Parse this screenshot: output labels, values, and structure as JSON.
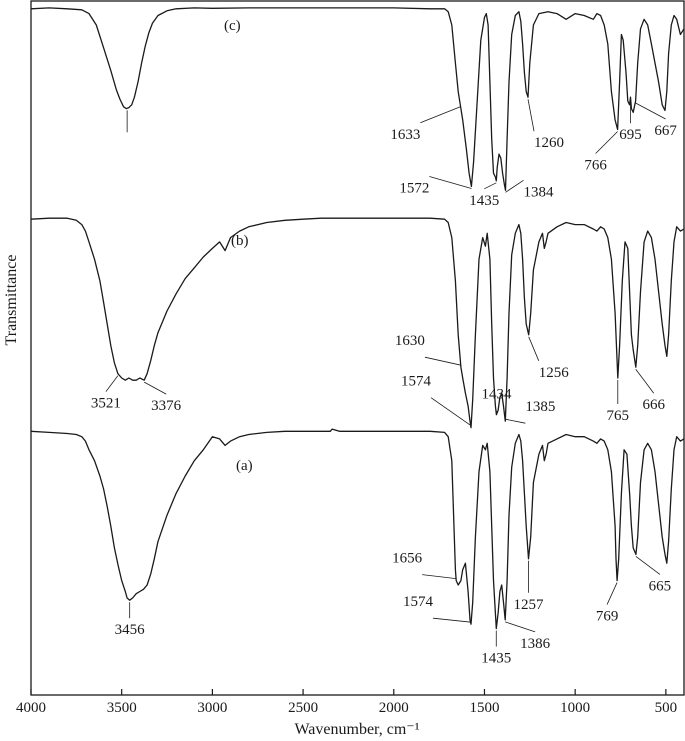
{
  "chart_data": {
    "type": "line",
    "title": "",
    "xlabel": "Wavenumber, cm⁻¹",
    "ylabel": "Transmittance",
    "xlim": [
      4000,
      400
    ],
    "x_reversed": true,
    "y_ticks_shown": false,
    "grid": false,
    "xticks": [
      {
        "value": 4000,
        "label": "4000"
      },
      {
        "value": 3500,
        "label": "3500"
      },
      {
        "value": 3000,
        "label": "3000"
      },
      {
        "value": 2500,
        "label": "2500"
      },
      {
        "value": 2000,
        "label": "2000"
      },
      {
        "value": 1500,
        "label": "1500"
      },
      {
        "value": 1000,
        "label": "1000"
      },
      {
        "value": 500,
        "label": "500"
      }
    ],
    "series": [
      {
        "name": "(c)",
        "label": "(c)",
        "x": [
          4000,
          3900,
          3800,
          3720,
          3680,
          3640,
          3600,
          3560,
          3530,
          3510,
          3490,
          3475,
          3460,
          3445,
          3430,
          3410,
          3390,
          3370,
          3350,
          3330,
          3300,
          3250,
          3200,
          3100,
          3000,
          2800,
          2500,
          2200,
          2000,
          1800,
          1720,
          1700,
          1680,
          1660,
          1645,
          1633,
          1620,
          1600,
          1585,
          1572,
          1560,
          1540,
          1520,
          1500,
          1490,
          1480,
          1470,
          1460,
          1450,
          1440,
          1435,
          1430,
          1420,
          1410,
          1400,
          1390,
          1384,
          1375,
          1365,
          1350,
          1330,
          1310,
          1300,
          1290,
          1280,
          1270,
          1260,
          1250,
          1230,
          1200,
          1150,
          1100,
          1050,
          1000,
          950,
          900,
          880,
          860,
          840,
          820,
          800,
          780,
          766,
          755,
          745,
          735,
          720,
          710,
          700,
          695,
          690,
          680,
          667,
          655,
          640,
          620,
          600,
          580,
          560,
          540,
          520,
          505,
          495,
          485,
          470,
          455,
          440,
          420,
          400
        ],
        "values": [
          0.985,
          0.99,
          0.985,
          0.98,
          0.96,
          0.9,
          0.78,
          0.66,
          0.56,
          0.51,
          0.47,
          0.46,
          0.465,
          0.48,
          0.52,
          0.6,
          0.7,
          0.79,
          0.86,
          0.91,
          0.95,
          0.975,
          0.985,
          0.99,
          0.988,
          0.99,
          0.99,
          0.99,
          0.99,
          0.985,
          0.985,
          0.97,
          0.9,
          0.7,
          0.55,
          0.48,
          0.4,
          0.25,
          0.12,
          0.05,
          0.18,
          0.5,
          0.82,
          0.94,
          0.96,
          0.9,
          0.6,
          0.3,
          0.12,
          0.1,
          0.08,
          0.15,
          0.22,
          0.2,
          0.12,
          0.06,
          0.03,
          0.3,
          0.6,
          0.85,
          0.95,
          0.97,
          0.92,
          0.8,
          0.65,
          0.55,
          0.52,
          0.7,
          0.9,
          0.96,
          0.97,
          0.96,
          0.93,
          0.96,
          0.95,
          0.93,
          0.96,
          0.95,
          0.9,
          0.8,
          0.55,
          0.4,
          0.35,
          0.6,
          0.85,
          0.82,
          0.65,
          0.5,
          0.48,
          0.52,
          0.46,
          0.44,
          0.5,
          0.7,
          0.88,
          0.93,
          0.9,
          0.8,
          0.7,
          0.6,
          0.48,
          0.45,
          0.55,
          0.75,
          0.9,
          0.95,
          0.93,
          0.85,
          0.88
        ]
      },
      {
        "name": "(b)",
        "label": "(b)",
        "x": [
          4000,
          3900,
          3800,
          3750,
          3720,
          3700,
          3680,
          3650,
          3620,
          3600,
          3580,
          3560,
          3540,
          3521,
          3500,
          3480,
          3460,
          3440,
          3420,
          3400,
          3376,
          3360,
          3340,
          3320,
          3300,
          3250,
          3200,
          3150,
          3100,
          3050,
          3000,
          2960,
          2930,
          2900,
          2850,
          2800,
          2700,
          2600,
          2500,
          2400,
          2300,
          2200,
          2100,
          2000,
          1900,
          1800,
          1720,
          1700,
          1680,
          1660,
          1645,
          1630,
          1620,
          1605,
          1590,
          1580,
          1574,
          1565,
          1550,
          1530,
          1510,
          1495,
          1485,
          1470,
          1460,
          1450,
          1440,
          1434,
          1425,
          1415,
          1405,
          1395,
          1385,
          1375,
          1365,
          1350,
          1330,
          1310,
          1300,
          1290,
          1280,
          1270,
          1256,
          1245,
          1230,
          1200,
          1180,
          1170,
          1160,
          1150,
          1100,
          1050,
          1000,
          950,
          900,
          880,
          860,
          840,
          820,
          800,
          780,
          770,
          765,
          755,
          740,
          725,
          710,
          700,
          690,
          680,
          666,
          655,
          640,
          620,
          600,
          580,
          560,
          540,
          520,
          505,
          495,
          485,
          470,
          455,
          440,
          420,
          400
        ],
        "values": [
          0.985,
          0.99,
          0.99,
          0.98,
          0.96,
          0.93,
          0.88,
          0.8,
          0.7,
          0.6,
          0.5,
          0.4,
          0.32,
          0.27,
          0.25,
          0.24,
          0.25,
          0.24,
          0.24,
          0.25,
          0.24,
          0.27,
          0.33,
          0.4,
          0.46,
          0.56,
          0.64,
          0.71,
          0.76,
          0.81,
          0.85,
          0.88,
          0.84,
          0.9,
          0.93,
          0.95,
          0.97,
          0.98,
          0.985,
          0.99,
          0.99,
          0.99,
          0.99,
          0.99,
          0.99,
          0.99,
          0.985,
          0.97,
          0.9,
          0.7,
          0.45,
          0.3,
          0.25,
          0.18,
          0.12,
          0.05,
          0.02,
          0.15,
          0.45,
          0.8,
          0.9,
          0.86,
          0.92,
          0.8,
          0.5,
          0.25,
          0.12,
          0.08,
          0.1,
          0.16,
          0.18,
          0.12,
          0.05,
          0.25,
          0.55,
          0.82,
          0.92,
          0.96,
          0.92,
          0.8,
          0.62,
          0.5,
          0.45,
          0.55,
          0.75,
          0.88,
          0.92,
          0.85,
          0.88,
          0.92,
          0.95,
          0.97,
          0.96,
          0.96,
          0.94,
          0.93,
          0.95,
          0.94,
          0.9,
          0.8,
          0.55,
          0.35,
          0.25,
          0.4,
          0.7,
          0.88,
          0.85,
          0.65,
          0.45,
          0.38,
          0.3,
          0.4,
          0.65,
          0.88,
          0.93,
          0.9,
          0.8,
          0.65,
          0.5,
          0.4,
          0.35,
          0.45,
          0.7,
          0.88,
          0.95,
          0.93,
          0.94
        ]
      },
      {
        "name": "(a)",
        "label": "(a)",
        "x": [
          4000,
          3900,
          3800,
          3750,
          3720,
          3700,
          3680,
          3650,
          3620,
          3600,
          3580,
          3560,
          3540,
          3520,
          3500,
          3480,
          3470,
          3456,
          3440,
          3420,
          3400,
          3380,
          3360,
          3340,
          3320,
          3300,
          3250,
          3200,
          3150,
          3100,
          3050,
          3000,
          2960,
          2930,
          2900,
          2850,
          2800,
          2700,
          2600,
          2500,
          2400,
          2350,
          2340,
          2300,
          2200,
          2100,
          2000,
          1900,
          1800,
          1720,
          1700,
          1680,
          1670,
          1660,
          1656,
          1645,
          1630,
          1620,
          1605,
          1590,
          1580,
          1574,
          1565,
          1550,
          1530,
          1510,
          1495,
          1485,
          1470,
          1460,
          1450,
          1440,
          1435,
          1425,
          1415,
          1405,
          1395,
          1386,
          1375,
          1365,
          1350,
          1330,
          1310,
          1300,
          1290,
          1280,
          1270,
          1257,
          1245,
          1230,
          1200,
          1180,
          1170,
          1160,
          1150,
          1100,
          1050,
          1000,
          950,
          900,
          880,
          860,
          840,
          820,
          800,
          780,
          775,
          769,
          760,
          745,
          730,
          715,
          700,
          690,
          680,
          665,
          655,
          640,
          620,
          600,
          580,
          560,
          540,
          520,
          505,
          495,
          485,
          470,
          455,
          440,
          420,
          400
        ],
        "values": [
          0.985,
          0.98,
          0.975,
          0.97,
          0.96,
          0.94,
          0.9,
          0.85,
          0.78,
          0.72,
          0.64,
          0.55,
          0.45,
          0.37,
          0.3,
          0.25,
          0.22,
          0.21,
          0.22,
          0.24,
          0.25,
          0.26,
          0.28,
          0.33,
          0.4,
          0.48,
          0.6,
          0.7,
          0.78,
          0.85,
          0.9,
          0.96,
          0.95,
          0.92,
          0.94,
          0.96,
          0.97,
          0.98,
          0.985,
          0.985,
          0.985,
          0.985,
          0.995,
          0.985,
          0.985,
          0.985,
          0.985,
          0.985,
          0.985,
          0.98,
          0.96,
          0.85,
          0.6,
          0.35,
          0.3,
          0.28,
          0.3,
          0.35,
          0.38,
          0.25,
          0.12,
          0.1,
          0.2,
          0.5,
          0.8,
          0.92,
          0.9,
          0.93,
          0.8,
          0.55,
          0.3,
          0.15,
          0.08,
          0.15,
          0.25,
          0.28,
          0.2,
          0.12,
          0.3,
          0.6,
          0.82,
          0.93,
          0.97,
          0.94,
          0.85,
          0.7,
          0.55,
          0.4,
          0.5,
          0.75,
          0.88,
          0.92,
          0.85,
          0.88,
          0.93,
          0.95,
          0.97,
          0.96,
          0.96,
          0.94,
          0.93,
          0.95,
          0.94,
          0.9,
          0.8,
          0.55,
          0.4,
          0.3,
          0.4,
          0.7,
          0.9,
          0.88,
          0.7,
          0.55,
          0.45,
          0.42,
          0.5,
          0.75,
          0.9,
          0.93,
          0.9,
          0.8,
          0.65,
          0.5,
          0.42,
          0.38,
          0.48,
          0.72,
          0.9,
          0.96,
          0.94,
          0.95
        ]
      }
    ],
    "annotations": [
      {
        "series": "(c)",
        "x": 3470,
        "text": ""
      },
      {
        "series": "(c)",
        "x": 1633,
        "text": "1633"
      },
      {
        "series": "(c)",
        "x": 1572,
        "text": "1572"
      },
      {
        "series": "(c)",
        "x": 1435,
        "text": "1435"
      },
      {
        "series": "(c)",
        "x": 1384,
        "text": "1384"
      },
      {
        "series": "(c)",
        "x": 1260,
        "text": "1260"
      },
      {
        "series": "(c)",
        "x": 766,
        "text": "766"
      },
      {
        "series": "(c)",
        "x": 695,
        "text": "695"
      },
      {
        "series": "(c)",
        "x": 667,
        "text": "667"
      },
      {
        "series": "(b)",
        "x": 3521,
        "text": "3521"
      },
      {
        "series": "(b)",
        "x": 3376,
        "text": "3376"
      },
      {
        "series": "(b)",
        "x": 1630,
        "text": "1630"
      },
      {
        "series": "(b)",
        "x": 1574,
        "text": "1574"
      },
      {
        "series": "(b)",
        "x": 1434,
        "text": "1434"
      },
      {
        "series": "(b)",
        "x": 1385,
        "text": "1385"
      },
      {
        "series": "(b)",
        "x": 1256,
        "text": "1256"
      },
      {
        "series": "(b)",
        "x": 765,
        "text": "765"
      },
      {
        "series": "(b)",
        "x": 666,
        "text": "666"
      },
      {
        "series": "(a)",
        "x": 3456,
        "text": "3456"
      },
      {
        "series": "(a)",
        "x": 1656,
        "text": "1656"
      },
      {
        "series": "(a)",
        "x": 1574,
        "text": "1574"
      },
      {
        "series": "(a)",
        "x": 1435,
        "text": "1435"
      },
      {
        "series": "(a)",
        "x": 1386,
        "text": "1386"
      },
      {
        "series": "(a)",
        "x": 1257,
        "text": "1257"
      },
      {
        "series": "(a)",
        "x": 769,
        "text": "769"
      },
      {
        "series": "(a)",
        "x": 665,
        "text": "665"
      }
    ]
  }
}
